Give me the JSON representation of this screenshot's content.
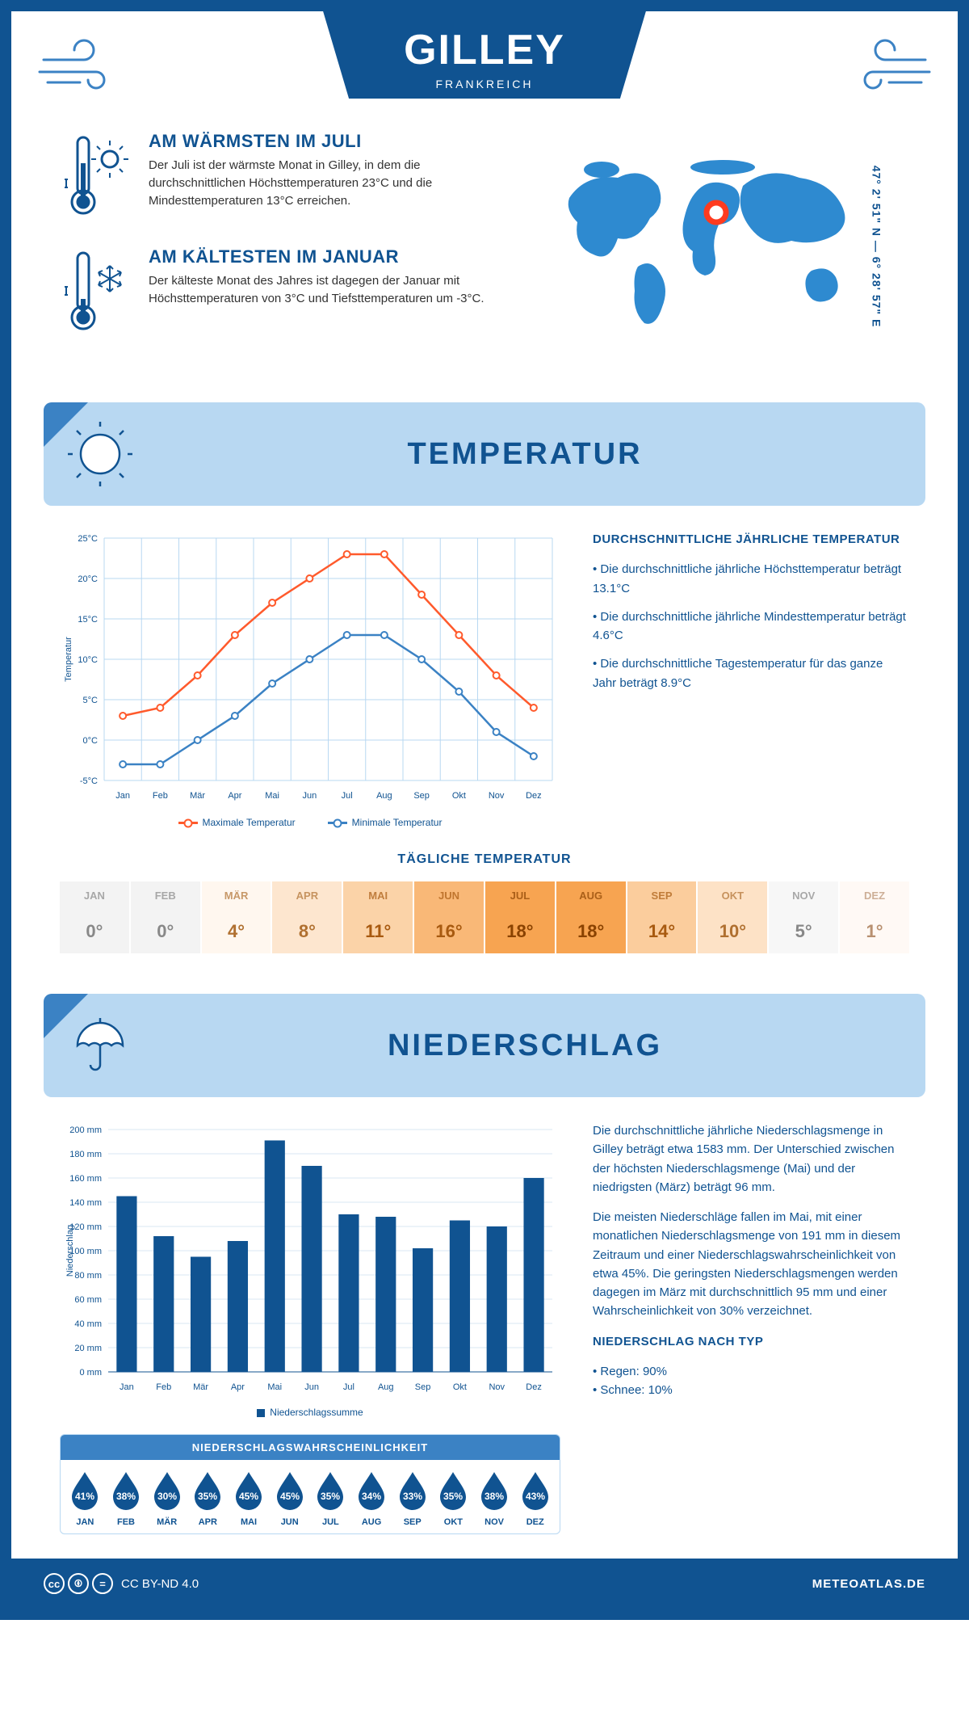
{
  "header": {
    "title": "GILLEY",
    "country": "FRANKREICH"
  },
  "coords": "47° 2' 51\" N — 6° 28' 57\" E",
  "warm": {
    "title": "AM WÄRMSTEN IM JULI",
    "text": "Der Juli ist der wärmste Monat in Gilley, in dem die durchschnittlichen Höchsttemperaturen 23°C und die Mindesttemperaturen 13°C erreichen."
  },
  "cold": {
    "title": "AM KÄLTESTEN IM JANUAR",
    "text": "Der kälteste Monat des Jahres ist dagegen der Januar mit Höchsttemperaturen von 3°C und Tiefsttemperaturen um -3°C."
  },
  "sections": {
    "temp": "TEMPERATUR",
    "precip": "NIEDERSCHLAG"
  },
  "months": [
    "Jan",
    "Feb",
    "Mär",
    "Apr",
    "Mai",
    "Jun",
    "Jul",
    "Aug",
    "Sep",
    "Okt",
    "Nov",
    "Dez"
  ],
  "months_upper": [
    "JAN",
    "FEB",
    "MÄR",
    "APR",
    "MAI",
    "JUN",
    "JUL",
    "AUG",
    "SEP",
    "OKT",
    "NOV",
    "DEZ"
  ],
  "temp_chart": {
    "ylabel": "Temperatur",
    "ymin": -5,
    "ymax": 25,
    "ystep": 5,
    "ysuffix": "°C",
    "max_series": [
      3,
      4,
      8,
      13,
      17,
      20,
      23,
      23,
      18,
      13,
      8,
      4
    ],
    "min_series": [
      -3,
      -3,
      0,
      3,
      7,
      10,
      13,
      13,
      10,
      6,
      1,
      -2
    ],
    "max_color": "#ff5a2c",
    "min_color": "#3b82c4",
    "grid_color": "#b8d8f2",
    "legend_max": "Maximale Temperatur",
    "legend_min": "Minimale Temperatur"
  },
  "temp_text": {
    "title": "DURCHSCHNITTLICHE JÄHRLICHE TEMPERATUR",
    "b1": "• Die durchschnittliche jährliche Höchsttemperatur beträgt 13.1°C",
    "b2": "• Die durchschnittliche jährliche Mindesttemperatur beträgt 4.6°C",
    "b3": "• Die durchschnittliche Tagestemperatur für das ganze Jahr beträgt 8.9°C"
  },
  "daily_temp": {
    "title": "TÄGLICHE TEMPERATUR",
    "values": [
      "0°",
      "0°",
      "4°",
      "8°",
      "11°",
      "16°",
      "18°",
      "18°",
      "14°",
      "10°",
      "5°",
      "1°"
    ],
    "colors": [
      "#f3f3f3",
      "#f3f3f3",
      "#fff7ef",
      "#fde6cf",
      "#fbd3a8",
      "#f9b877",
      "#f7a451",
      "#f7a451",
      "#fbcd9d",
      "#fde2c6",
      "#f7f7f7",
      "#fff9f5"
    ],
    "text_colors": [
      "#888",
      "#888",
      "#b07030",
      "#b07030",
      "#a85a10",
      "#a85a10",
      "#8a4200",
      "#8a4200",
      "#a85a10",
      "#b07030",
      "#888",
      "#b89070"
    ]
  },
  "precip_chart": {
    "ylabel": "Niederschlag",
    "ymin": 0,
    "ymax": 200,
    "ystep": 20,
    "ysuffix": " mm",
    "values": [
      145,
      112,
      95,
      108,
      191,
      170,
      130,
      128,
      102,
      125,
      120,
      160
    ],
    "bar_color": "#105391",
    "grid_color": "#d8e7f3",
    "legend": "Niederschlagssumme"
  },
  "precip_text": {
    "p1": "Die durchschnittliche jährliche Niederschlagsmenge in Gilley beträgt etwa 1583 mm. Der Unterschied zwischen der höchsten Niederschlagsmenge (Mai) und der niedrigsten (März) beträgt 96 mm.",
    "p2": "Die meisten Niederschläge fallen im Mai, mit einer monatlichen Niederschlagsmenge von 191 mm in diesem Zeitraum und einer Niederschlagswahrscheinlichkeit von etwa 45%. Die geringsten Niederschlagsmengen werden dagegen im März mit durchschnittlich 95 mm und einer Wahrscheinlichkeit von 30% verzeichnet.",
    "type_title": "NIEDERSCHLAG NACH TYP",
    "type_b1": "• Regen: 90%",
    "type_b2": "• Schnee: 10%"
  },
  "prob": {
    "title": "NIEDERSCHLAGSWAHRSCHEINLICHKEIT",
    "values": [
      "41%",
      "38%",
      "30%",
      "35%",
      "45%",
      "45%",
      "35%",
      "34%",
      "33%",
      "35%",
      "38%",
      "43%"
    ]
  },
  "footer": {
    "license": "CC BY-ND 4.0",
    "site": "METEOATLAS.DE"
  },
  "colors": {
    "primary": "#105391",
    "light": "#b8d8f2",
    "mid": "#3b82c4"
  }
}
